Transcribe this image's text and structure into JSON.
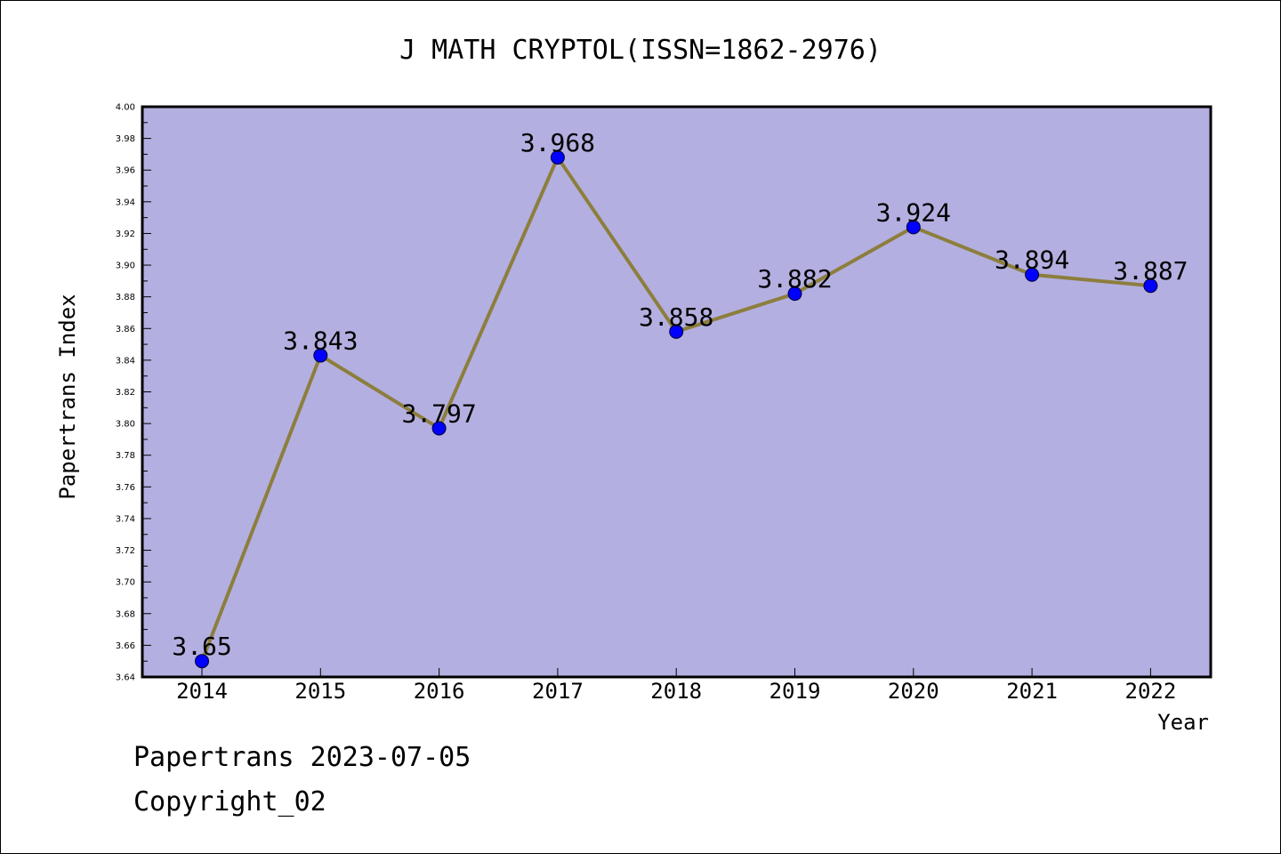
{
  "chart_data": {
    "type": "line",
    "title": "J MATH CRYPTOL(ISSN=1862-2976)",
    "xlabel": "Year",
    "ylabel": "Papertrans Index",
    "categories": [
      "2014",
      "2015",
      "2016",
      "2017",
      "2018",
      "2019",
      "2020",
      "2021",
      "2022"
    ],
    "values": [
      3.65,
      3.843,
      3.797,
      3.968,
      3.858,
      3.882,
      3.924,
      3.894,
      3.887
    ],
    "data_labels": [
      "3.65",
      "3.843",
      "3.797",
      "3.968",
      "3.858",
      "3.882",
      "3.924",
      "3.894",
      "3.887"
    ],
    "ylim": [
      3.64,
      4.0
    ],
    "y_ticks": [
      "3.64",
      "3.66",
      "3.68",
      "3.70",
      "3.72",
      "3.74",
      "3.76",
      "3.78",
      "3.80",
      "3.82",
      "3.84",
      "3.86",
      "3.88",
      "3.90",
      "3.92",
      "3.94",
      "3.96",
      "3.98",
      "4.00"
    ],
    "grid": false,
    "legend": "none",
    "colors": {
      "plot_background": "#b4afe1",
      "line": "#8c7e3c",
      "marker": "#0000ff"
    }
  },
  "footer": {
    "date_text": "Papertrans 2023-07-05",
    "copyright_text": "Copyright_02"
  }
}
